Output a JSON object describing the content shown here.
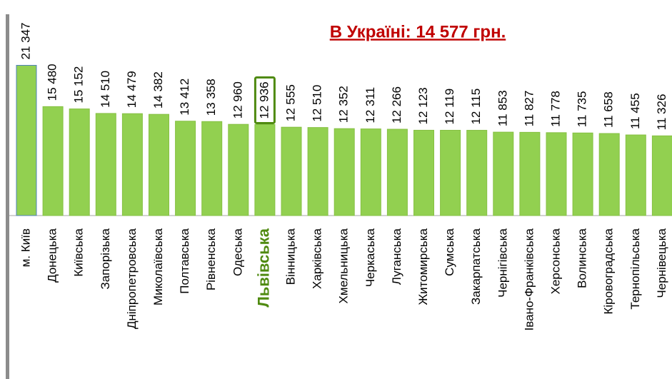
{
  "chart_data": {
    "type": "bar",
    "title": "В Україні: 14 577 грн.",
    "categories": [
      "м. Київ",
      "Донецька",
      "Київська",
      "Запорізька",
      "Дніпропетровська",
      "Миколаївська",
      "Полтавська",
      "Рівненська",
      "Одеська",
      "Львівська",
      "Вінницька",
      "Харківська",
      "Хмельницька",
      "Черкаська",
      "Луганська",
      "Житомирська",
      "Сумська",
      "Закарпатська",
      "Чернігівська",
      "Івано-Франківська",
      "Херсонська",
      "Волинська",
      "Кіровоградська",
      "Тернопільська",
      "Чернівецька"
    ],
    "values": [
      21347,
      15480,
      15152,
      14510,
      14479,
      14382,
      13412,
      13358,
      12960,
      12936,
      12555,
      12510,
      12352,
      12311,
      12266,
      12123,
      12119,
      12115,
      11853,
      11827,
      11778,
      11735,
      11658,
      11455,
      11326
    ],
    "value_labels": [
      "21 347",
      "15 480",
      "15 152",
      "14 510",
      "14 479",
      "14 382",
      "13 412",
      "13 358",
      "12 960",
      "12 936",
      "12 555",
      "12 510",
      "12 352",
      "12 311",
      "12 266",
      "12 123",
      "12 119",
      "12 115",
      "11 853",
      "11 827",
      "11 778",
      "11 735",
      "11 658",
      "11 455",
      "11 326"
    ],
    "color": "#92d050",
    "highlight": 9,
    "highlight_color": "#4f8a10",
    "ylim": [
      0,
      21500
    ]
  }
}
